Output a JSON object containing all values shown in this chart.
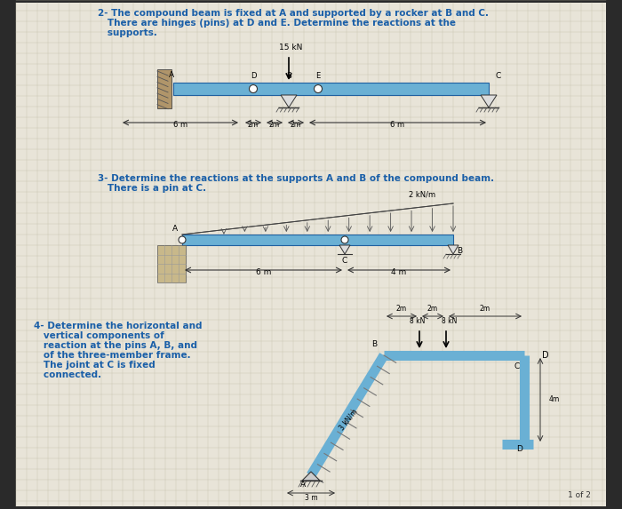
{
  "bg_color": "#2a2a2a",
  "page_bg": "#e8e4d8",
  "text_color": "#1a5fa8",
  "beam_color": "#6ab0d4",
  "page_label": "1 of 2",
  "q2_line1": "2- The compound beam is fixed at A and supported by a rocker at B and C.",
  "q2_line2": "   There are hinges (pins) at D and E. Determine the reactions at the",
  "q2_line3": "   supports.",
  "q3_line1": "3- Determine the reactions at the supports A and B of the compound beam.",
  "q3_line2": "   There is a pin at C.",
  "q4_line1": "4- Determine the horizontal and",
  "q4_line2": "   vertical components of",
  "q4_line3": "   reaction at the pins A, B, and",
  "q4_line4": "   of the three-member frame.",
  "q4_line5": "   The joint at C is fixed",
  "q4_line6": "   connected."
}
